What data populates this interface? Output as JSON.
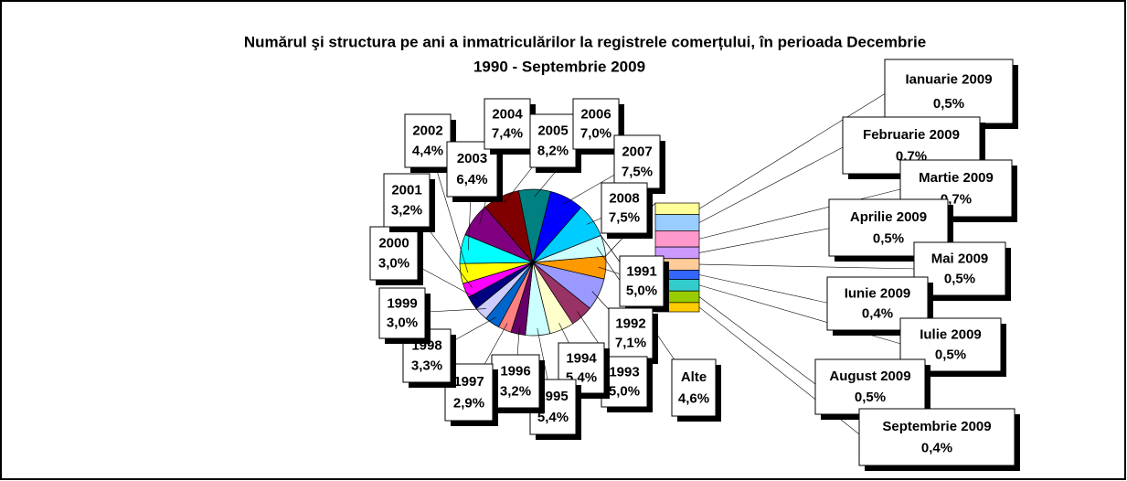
{
  "chart_data": {
    "type": "pie",
    "title": [
      "Numărul şi structura pe ani a inmatriculărilor la registrele comerțului, în perioada Decembrie",
      "1990 - Septembrie 2009"
    ],
    "categories": [
      "1991",
      "1992",
      "1993",
      "1994",
      "1995",
      "1996",
      "1997",
      "1998",
      "1999",
      "2000",
      "2001",
      "2002",
      "2003",
      "2004",
      "2005",
      "2006",
      "2007",
      "2008",
      "Alte"
    ],
    "values": [
      5.0,
      7.1,
      5.0,
      5.4,
      5.4,
      3.2,
      2.9,
      3.3,
      3.0,
      3.0,
      3.2,
      4.4,
      6.4,
      7.4,
      8.2,
      7.0,
      7.5,
      7.5,
      4.6
    ],
    "value_labels": [
      "5,0%",
      "7,1%",
      "5,0%",
      "5,4%",
      "5,4%",
      "3,2%",
      "2,9%",
      "3,3%",
      "3,0%",
      "3,0%",
      "3,2%",
      "4,4%",
      "6,4%",
      "7,4%",
      "8,2%",
      "7,0%",
      "7,5%",
      "7,5%",
      "4,6%"
    ],
    "colors": [
      "#ff9900",
      "#9999ff",
      "#993366",
      "#ffffcc",
      "#ccffff",
      "#660066",
      "#ff8080",
      "#0066cc",
      "#ccccff",
      "#000080",
      "#ff00ff",
      "#ffff00",
      "#00ffff",
      "#800080",
      "#800000",
      "#008080",
      "#0000ff",
      "#00ccff",
      "#ccffff"
    ],
    "bar": {
      "categories": [
        "Ianuarie 2009",
        "Februarie 2009",
        "Martie 2009",
        "Aprilie 2009",
        "Mai 2009",
        "Iunie 2009",
        "Iulie 2009",
        "August 2009",
        "Septembrie 2009"
      ],
      "values": [
        0.5,
        0.7,
        0.7,
        0.5,
        0.5,
        0.4,
        0.5,
        0.5,
        0.4
      ],
      "value_labels": [
        "0,5%",
        "0,7%",
        "0,7%",
        "0,5%",
        "0,5%",
        "0,4%",
        "0,5%",
        "0,5%",
        "0,4%"
      ],
      "colors": [
        "#ffff99",
        "#99ccff",
        "#ff99cc",
        "#cc99ff",
        "#ffcc99",
        "#3366ff",
        "#33cccc",
        "#99cc00",
        "#ffcc00"
      ]
    }
  }
}
